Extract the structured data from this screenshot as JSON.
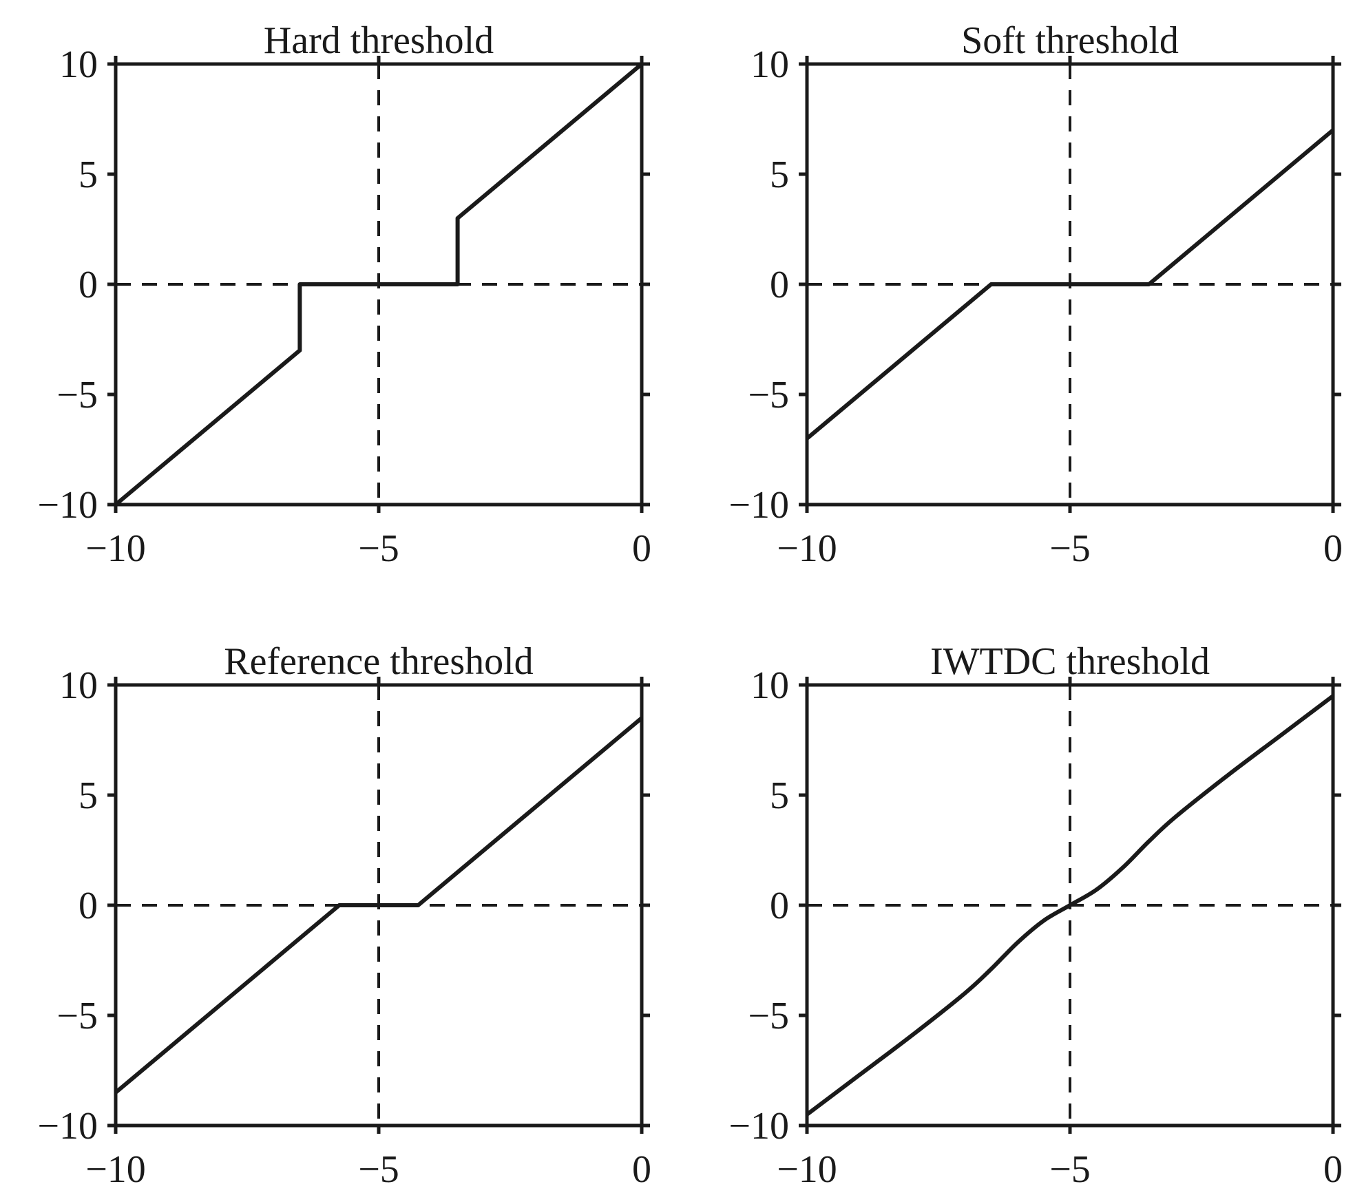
{
  "chart_data": [
    {
      "type": "line",
      "title": "Hard threshold",
      "xlim": [
        -10,
        0
      ],
      "ylim": [
        -10,
        10
      ],
      "xticks": [
        -10,
        -5,
        0
      ],
      "yticks": [
        -10,
        -5,
        0,
        5,
        10
      ],
      "xtick_labels": [
        "−10",
        "−5",
        "0"
      ],
      "ytick_labels": [
        "−10",
        "−5",
        "0",
        "5",
        "10"
      ],
      "grid": false,
      "reference_lines": {
        "x": -5,
        "y": 0,
        "style": "dashed"
      },
      "series": [
        {
          "x": [
            -10,
            -6.5,
            -6.5,
            -3.5,
            -3.5,
            0
          ],
          "y": [
            -10,
            -3,
            0,
            0,
            3,
            10
          ]
        }
      ]
    },
    {
      "type": "line",
      "title": "Soft threshold",
      "xlim": [
        -10,
        0
      ],
      "ylim": [
        -10,
        10
      ],
      "xticks": [
        -10,
        -5,
        0
      ],
      "yticks": [
        -10,
        -5,
        0,
        5,
        10
      ],
      "xtick_labels": [
        "−10",
        "−5",
        "0"
      ],
      "ytick_labels": [
        "−10",
        "−5",
        "0",
        "5",
        "10"
      ],
      "grid": false,
      "reference_lines": {
        "x": -5,
        "y": 0,
        "style": "dashed"
      },
      "series": [
        {
          "x": [
            -10,
            -6.5,
            -3.5,
            0
          ],
          "y": [
            -7,
            0,
            0,
            7
          ]
        }
      ]
    },
    {
      "type": "line",
      "title": "Reference threshold",
      "xlim": [
        -10,
        0
      ],
      "ylim": [
        -10,
        10
      ],
      "xticks": [
        -10,
        -5,
        0
      ],
      "yticks": [
        -10,
        -5,
        0,
        5,
        10
      ],
      "xtick_labels": [
        "−10",
        "−5",
        "0"
      ],
      "ytick_labels": [
        "−10",
        "−5",
        "0",
        "5",
        "10"
      ],
      "grid": false,
      "reference_lines": {
        "x": -5,
        "y": 0,
        "style": "dashed"
      },
      "series": [
        {
          "x": [
            -10,
            -5.75,
            -4.25,
            0
          ],
          "y": [
            -8.5,
            0,
            0,
            8.5
          ]
        }
      ]
    },
    {
      "type": "line",
      "title": "IWTDC threshold",
      "xlim": [
        -10,
        0
      ],
      "ylim": [
        -10,
        10
      ],
      "xticks": [
        -10,
        -5,
        0
      ],
      "yticks": [
        -10,
        -5,
        0,
        5,
        10
      ],
      "xtick_labels": [
        "−10",
        "−5",
        "0"
      ],
      "ytick_labels": [
        "−10",
        "−5",
        "0",
        "5",
        "10"
      ],
      "grid": false,
      "reference_lines": {
        "x": -5,
        "y": 0,
        "style": "dashed"
      },
      "series": [
        {
          "x": [
            -10,
            -9,
            -8,
            -7,
            -6.5,
            -6,
            -5.5,
            -5,
            -4.5,
            -4,
            -3.5,
            -3,
            -2,
            -1,
            0
          ],
          "y": [
            -9.5,
            -7.7,
            -5.9,
            -4.0,
            -2.9,
            -1.7,
            -0.7,
            0,
            0.7,
            1.7,
            2.9,
            4.0,
            5.9,
            7.7,
            9.5
          ]
        }
      ]
    }
  ]
}
